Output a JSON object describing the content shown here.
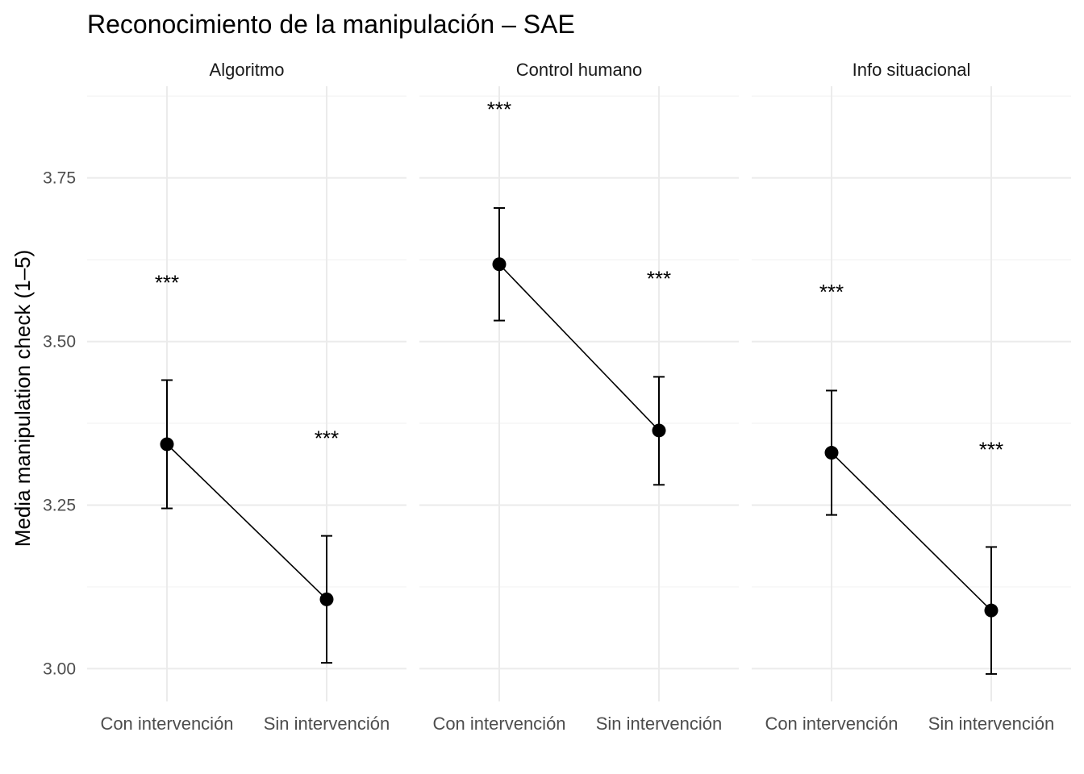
{
  "chart_data": {
    "type": "line",
    "title": "Reconocimiento de la manipulación – SAE",
    "xlabel": "",
    "ylabel": "Media manipulation check (1–5)",
    "ylim": [
      2.95,
      3.89
    ],
    "yticks": [
      "3.00",
      "3.25",
      "3.50",
      "3.75"
    ],
    "categories": [
      "Con intervención",
      "Sin intervención"
    ],
    "grid": true,
    "legend": "none",
    "significance_label": "***",
    "colors": {
      "line": "#000000",
      "grid_major": "#ebebeb",
      "grid_minor": "#f3f3f3"
    },
    "panels": [
      {
        "label": "Algoritmo",
        "points": [
          {
            "x": "Con intervención",
            "mean": 3.343,
            "lower": 3.245,
            "upper": 3.441,
            "sig": "***",
            "sig_y": 3.59
          },
          {
            "x": "Sin intervención",
            "mean": 3.106,
            "lower": 3.009,
            "upper": 3.203,
            "sig": "***",
            "sig_y": 3.352
          }
        ]
      },
      {
        "label": "Control humano",
        "points": [
          {
            "x": "Con intervención",
            "mean": 3.618,
            "lower": 3.532,
            "upper": 3.704,
            "sig": "***",
            "sig_y": 3.855
          },
          {
            "x": "Sin intervención",
            "mean": 3.364,
            "lower": 3.281,
            "upper": 3.446,
            "sig": "***",
            "sig_y": 3.596
          }
        ]
      },
      {
        "label": "Info situacional",
        "points": [
          {
            "x": "Con intervención",
            "mean": 3.33,
            "lower": 3.235,
            "upper": 3.425,
            "sig": "***",
            "sig_y": 3.576
          },
          {
            "x": "Sin intervención",
            "mean": 3.089,
            "lower": 2.992,
            "upper": 3.186,
            "sig": "***",
            "sig_y": 3.335
          }
        ]
      }
    ]
  }
}
